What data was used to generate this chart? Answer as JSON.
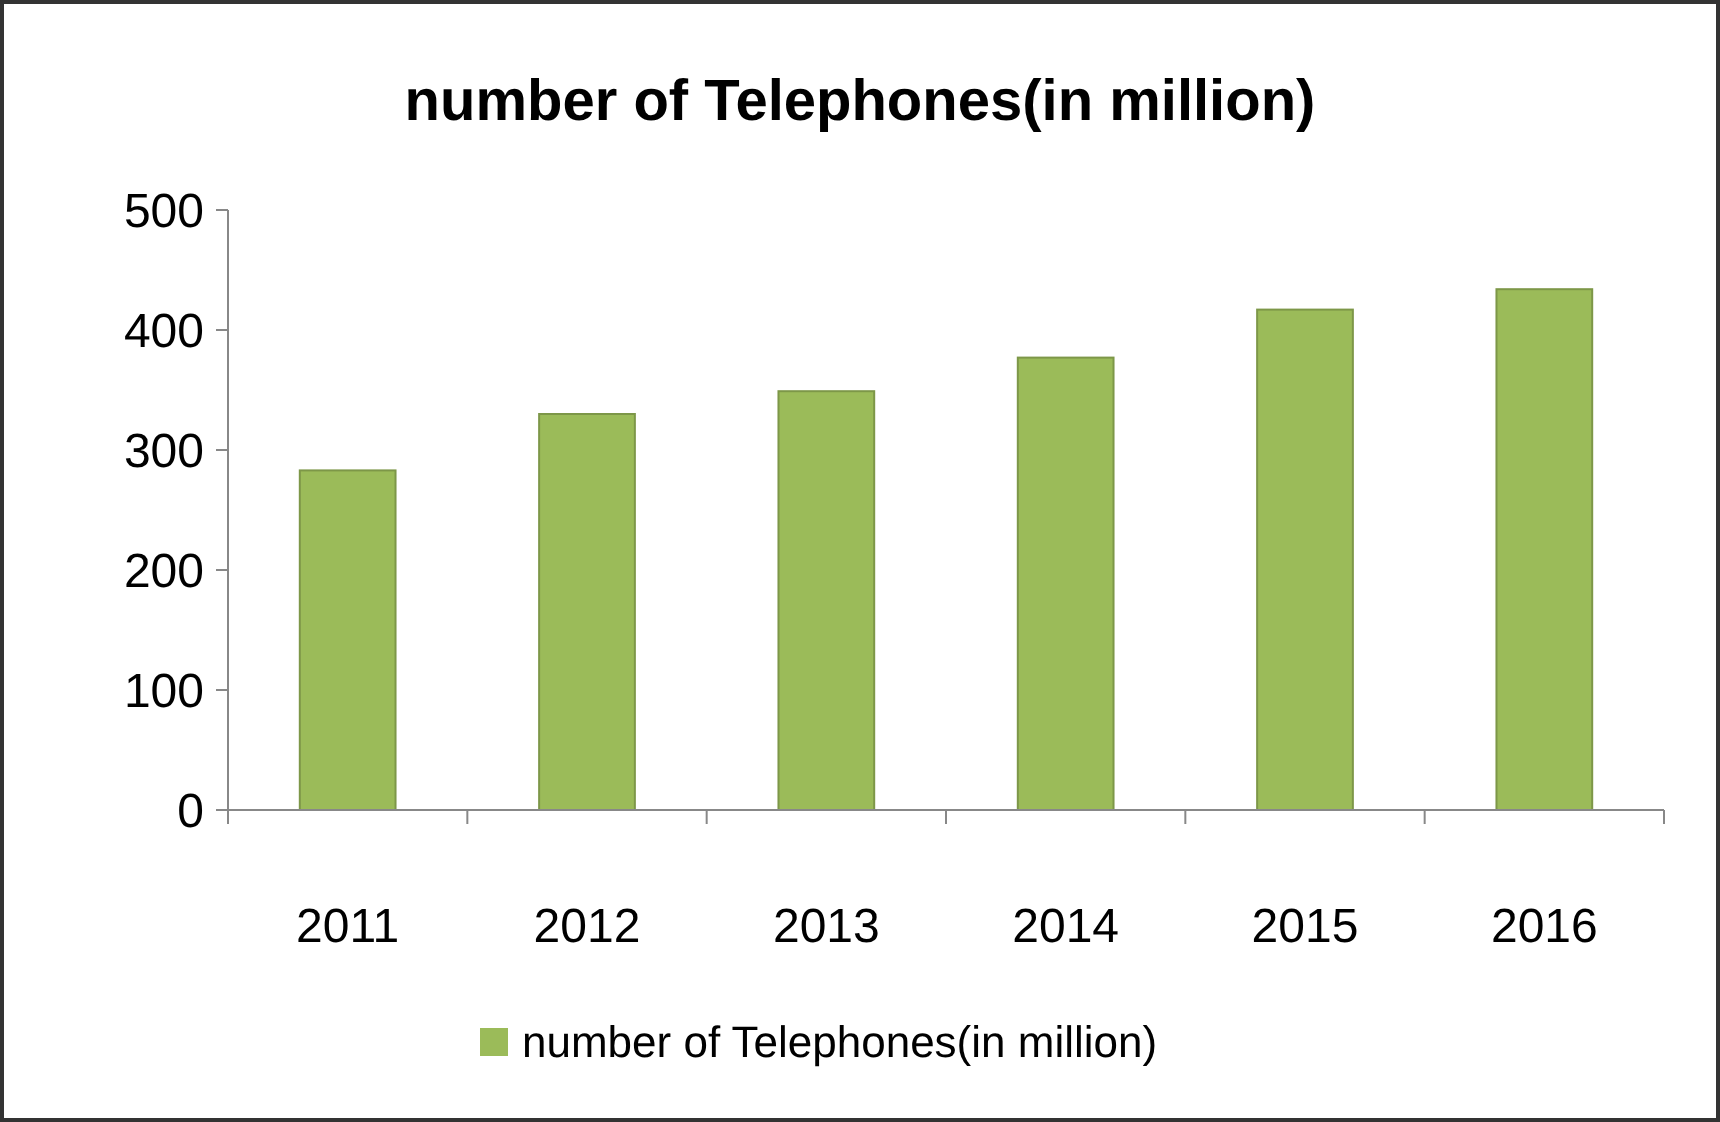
{
  "chart_data": {
    "type": "bar",
    "title": "number of Telephones(in million)",
    "categories": [
      "2011",
      "2012",
      "2013",
      "2014",
      "2015",
      "2016"
    ],
    "series": [
      {
        "name": "number of Telephones(in million)",
        "color": "#9bbb59",
        "values": [
          283,
          330,
          349,
          377,
          417,
          434
        ]
      }
    ],
    "ylim": [
      0,
      500
    ],
    "yticks": [
      0,
      100,
      200,
      300,
      400,
      500
    ],
    "grid": false,
    "legend": "bottom"
  }
}
